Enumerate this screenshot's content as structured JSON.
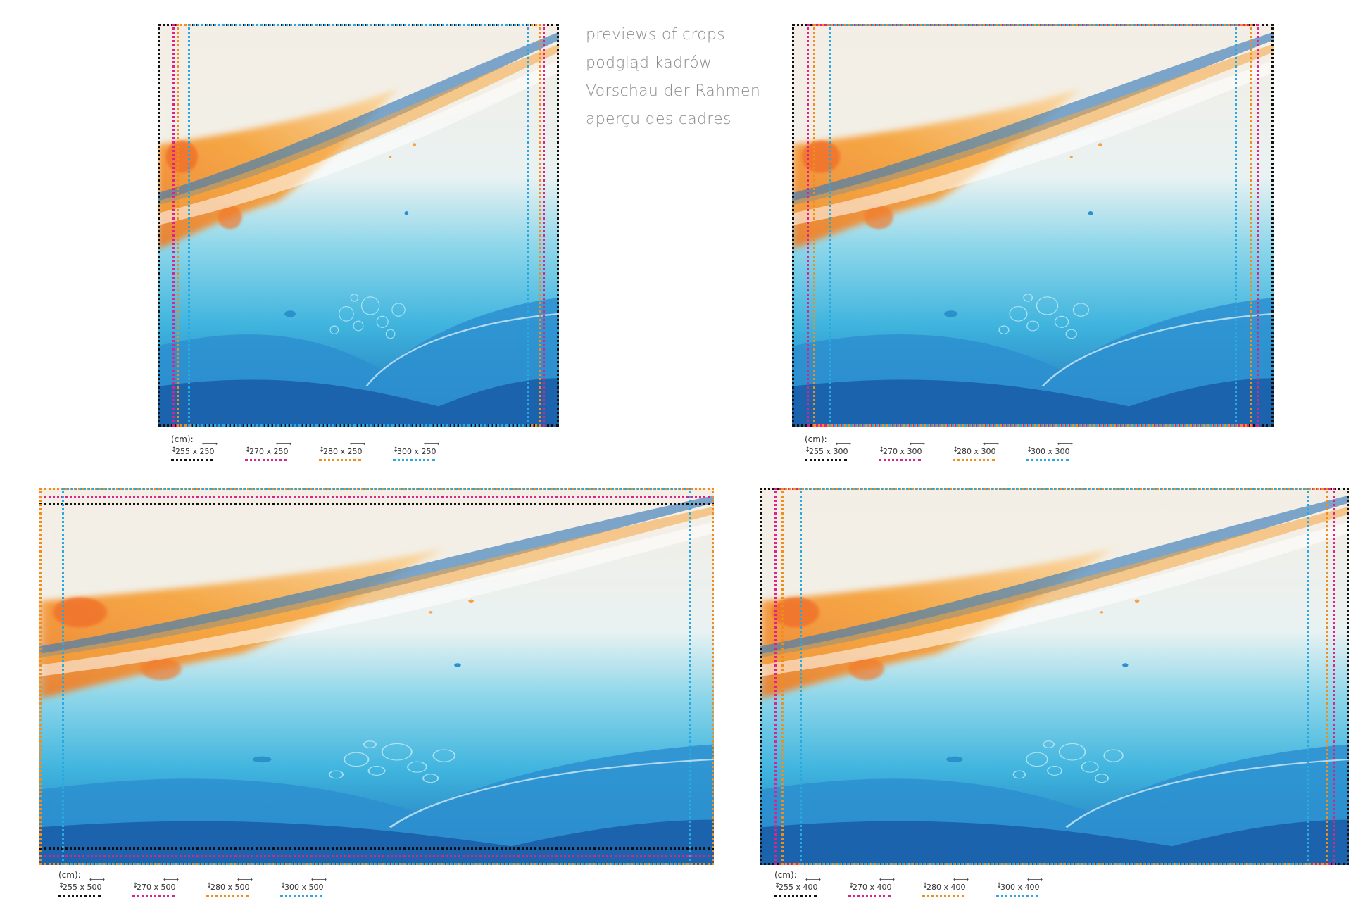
{
  "titles": [
    "previews of crops",
    "podgląd kadrów",
    "Vorschau der Rahmen",
    "aperçu des cadres"
  ],
  "colors": {
    "black": "#111111",
    "pink": "#e0218a",
    "orange": "#f28c1b",
    "blue": "#2aa8e0"
  },
  "legend_unit": "(cm):",
  "legends": [
    {
      "items": [
        "255 x 250",
        "270 x 250",
        "280 x 250",
        "300 x 250"
      ]
    },
    {
      "items": [
        "255 x 300",
        "270 x 300",
        "280 x 300",
        "300 x 300"
      ]
    },
    {
      "items": [
        "255 x 500",
        "270 x 500",
        "280 x 500",
        "300 x 500"
      ]
    },
    {
      "items": [
        "255 x 400",
        "270 x 400",
        "280 x 400",
        "300 x 400"
      ]
    }
  ]
}
